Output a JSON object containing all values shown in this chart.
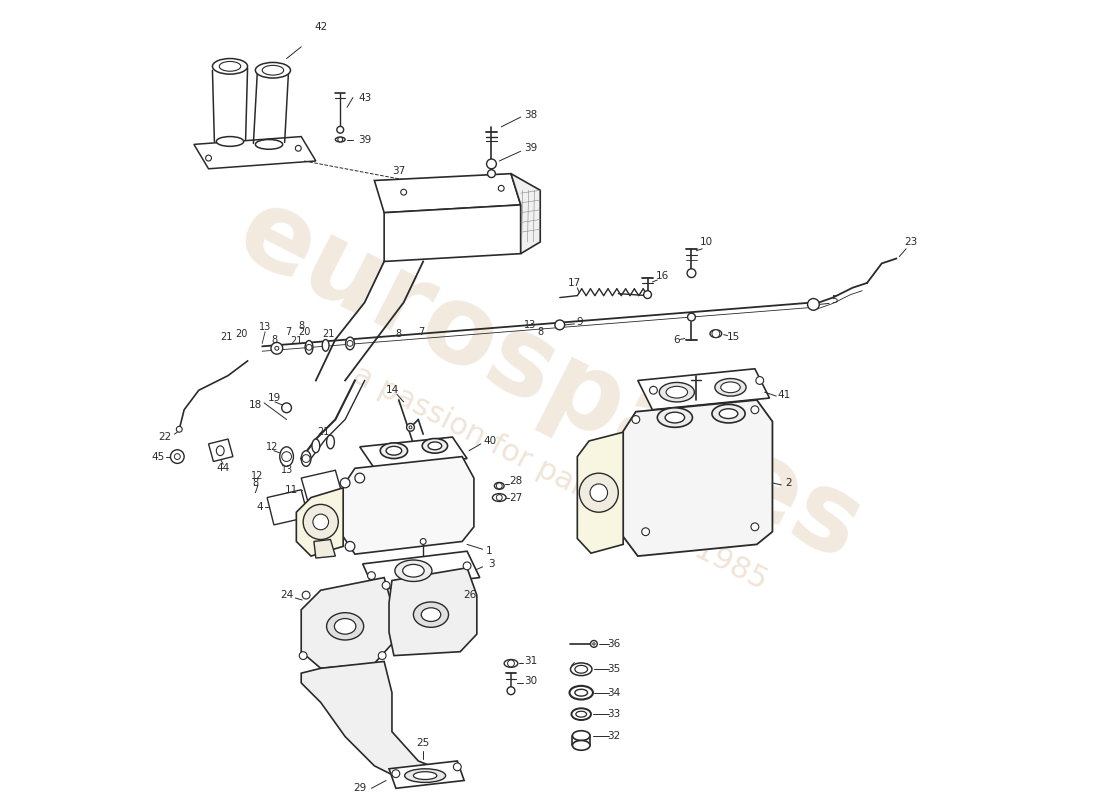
{
  "background_color": "#ffffff",
  "line_color": "#2a2a2a",
  "watermark_color_1": "#d4b896",
  "watermark_color_2": "#c8a070",
  "fig_width": 11.0,
  "fig_height": 8.0,
  "dpi": 100,
  "wm1": "eurospares",
  "wm2": "a passion for parts since 1985"
}
